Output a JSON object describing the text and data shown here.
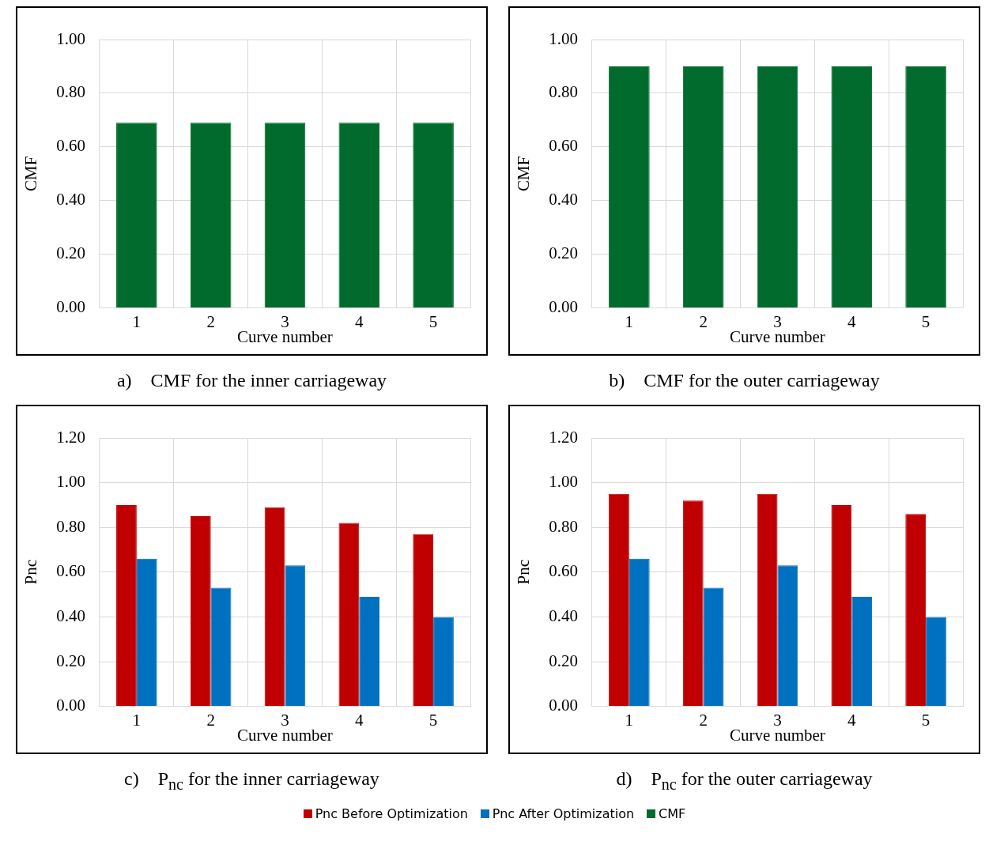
{
  "chart_data": [
    {
      "type": "bar",
      "title": "a)    CMF for the inner carriageway",
      "xlabel": "Curve number",
      "ylabel": "CMF",
      "categories": [
        "1",
        "2",
        "3",
        "4",
        "5"
      ],
      "series": [
        {
          "name": "CMF",
          "color": "#006b2c",
          "values": [
            0.69,
            0.69,
            0.69,
            0.69,
            0.69
          ]
        }
      ],
      "ylim": [
        0,
        1
      ],
      "yticks": [
        {
          "value": 0,
          "label": "0.00"
        },
        {
          "value": 0.2,
          "label": "0.20"
        },
        {
          "value": 0.4,
          "label": "0.40"
        },
        {
          "value": 0.6,
          "label": "0.60"
        },
        {
          "value": 0.8,
          "label": "0.80"
        },
        {
          "value": 1,
          "label": "1.00"
        }
      ],
      "grid": true,
      "legend": "bottom"
    },
    {
      "type": "bar",
      "title": "b)    CMF for the outer carriageway",
      "xlabel": "Curve number",
      "ylabel": "CMF",
      "categories": [
        "1",
        "2",
        "3",
        "4",
        "5"
      ],
      "series": [
        {
          "color": "#006b2c",
          "values": [
            0.9,
            0.9,
            0.9,
            0.9,
            0.9
          ]
        }
      ],
      "ylim": [
        0,
        1
      ],
      "yticks": [
        {
          "value": 0,
          "label": "0.00"
        },
        {
          "value": 0.2,
          "label": "0.20"
        },
        {
          "value": 0.4,
          "label": "0.40"
        },
        {
          "value": 0.6,
          "label": "0.60"
        },
        {
          "value": 0.8,
          "label": "0.80"
        },
        {
          "value": 1,
          "label": "1.00"
        }
      ],
      "grid": true
    },
    {
      "type": "bar",
      "title": "c)    P$_{nc}$ for the inner carriageway",
      "xlabel": "Curve number",
      "ylabel": "Pnc",
      "categories": [
        "1",
        "2",
        "3",
        "4",
        "5"
      ],
      "series": [
        {
          "name": "Pnc Before Optimization",
          "color": "#c00000",
          "values": [
            0.9,
            0.85,
            0.89,
            0.82,
            0.77
          ]
        },
        {
          "name": "Pnc After Optimization",
          "color": "#0070c0",
          "values": [
            0.66,
            0.53,
            0.63,
            0.49,
            0.4
          ]
        }
      ],
      "ylim": [
        0,
        1.2
      ],
      "yticks": [
        {
          "value": 0,
          "label": "0.00"
        },
        {
          "value": 0.2,
          "label": "0.20"
        },
        {
          "value": 0.4,
          "label": "0.40"
        },
        {
          "value": 0.6,
          "label": "0.60"
        },
        {
          "value": 0.8,
          "label": "0.80"
        },
        {
          "value": 1,
          "label": "1.00"
        },
        {
          "value": 1.2,
          "label": "1.20"
        }
      ],
      "grid": true,
      "legend": "bottom"
    },
    {
      "type": "bar",
      "title": "d)    P$_{nc}$ for the outer carriageway",
      "xlabel": "Curve number",
      "ylabel": "Pnc",
      "categories": [
        "1",
        "2",
        "3",
        "4",
        "5"
      ],
      "series": [
        {
          "color": "#c00000",
          "values": [
            0.95,
            0.92,
            0.95,
            0.9,
            0.86
          ]
        },
        {
          "color": "#0070c0",
          "values": [
            0.66,
            0.53,
            0.63,
            0.49,
            0.4
          ]
        }
      ],
      "ylim": [
        0,
        1.2
      ],
      "yticks": [
        {
          "value": 0,
          "label": "0.00"
        },
        {
          "value": 0.2,
          "label": "0.20"
        },
        {
          "value": 0.4,
          "label": "0.40"
        },
        {
          "value": 0.6,
          "label": "0.60"
        },
        {
          "value": 0.8,
          "label": "0.80"
        },
        {
          "value": 1,
          "label": "1.00"
        },
        {
          "value": 1.2,
          "label": "1.20"
        }
      ],
      "grid": true
    }
  ]
}
